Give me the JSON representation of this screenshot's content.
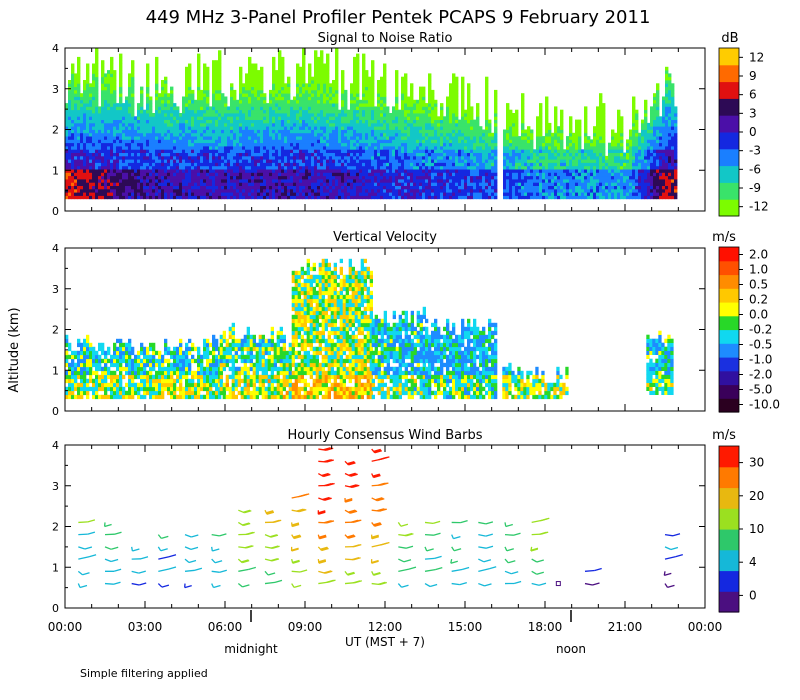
{
  "figure": {
    "title": "449 MHz 3-Panel Profiler Pentek PCAPS  9 February 2011",
    "ylabel": "Altitude (km)",
    "xlabel": "UT  (MST + 7)",
    "footnote": "Simple filtering applied",
    "midnight_label": "midnight",
    "noon_label": "noon"
  },
  "chart_data": [
    {
      "type": "heatmap",
      "title": "Signal to Noise Ratio",
      "units": "dB",
      "x_range_hours": [
        0,
        24
      ],
      "x_ticks": [
        "00:00",
        "03:00",
        "06:00",
        "09:00",
        "12:00",
        "15:00",
        "18:00",
        "21:00",
        "00:00"
      ],
      "y_ticks": [
        0,
        1,
        2,
        3,
        4
      ],
      "ylim": [
        0,
        4
      ],
      "colorbar": {
        "ticks": [
          "12",
          "9",
          "6",
          "3",
          "0",
          "-3",
          "-6",
          "-9",
          "-12"
        ]
      },
      "data_start_hour": 0.0,
      "data_end_hour": 22.9,
      "gap_hours": [
        16.1,
        16.4
      ],
      "snr_profile_dB": [
        {
          "hour": 0.0,
          "low": 9,
          "mid": 1,
          "top_km": 2.6
        },
        {
          "hour": 1.5,
          "low": 6,
          "mid": 1,
          "top_km": 2.4
        },
        {
          "hour": 3.0,
          "low": 3,
          "mid": 0,
          "top_km": 2.2
        },
        {
          "hour": 6.0,
          "low": 2,
          "mid": -1,
          "top_km": 2.3
        },
        {
          "hour": 9.0,
          "low": 3,
          "mid": 0,
          "top_km": 2.5
        },
        {
          "hour": 12.0,
          "low": 1,
          "mid": -2,
          "top_km": 2.2
        },
        {
          "hour": 15.0,
          "low": 0,
          "mid": -4,
          "top_km": 1.9
        },
        {
          "hour": 18.0,
          "low": -3,
          "mid": -7,
          "top_km": 1.4
        },
        {
          "hour": 21.0,
          "low": -4,
          "mid": -8,
          "top_km": 1.2
        },
        {
          "hour": 22.5,
          "low": 8,
          "mid": 2,
          "top_km": 2.5
        }
      ]
    },
    {
      "type": "heatmap",
      "title": "Vertical Velocity",
      "units": "m/s",
      "x_range_hours": [
        0,
        24
      ],
      "y_ticks": [
        0,
        1,
        2,
        3,
        4
      ],
      "ylim": [
        0,
        4
      ],
      "colorbar": {
        "ticks": [
          "2.0",
          "1.0",
          "0.5",
          "0.2",
          "0.0",
          "-0.2",
          "-0.5",
          "-1.0",
          "-2.0",
          "-5.0",
          "-10.0"
        ]
      },
      "blocks": [
        {
          "h0": 0.0,
          "h1": 5.8,
          "z0": 0.3,
          "z1": 1.8,
          "w": -0.3
        },
        {
          "h0": 5.8,
          "h1": 8.5,
          "z0": 0.3,
          "z1": 2.1,
          "w": -0.2
        },
        {
          "h0": 8.5,
          "h1": 11.5,
          "z0": 0.3,
          "z1": 3.8,
          "w": 0.0
        },
        {
          "h0": 11.5,
          "h1": 13.5,
          "z0": 0.3,
          "z1": 2.5,
          "w": -0.4
        },
        {
          "h0": 13.5,
          "h1": 16.1,
          "z0": 0.3,
          "z1": 2.3,
          "w": -0.5
        },
        {
          "h0": 16.4,
          "h1": 18.8,
          "z0": 0.3,
          "z1": 1.1,
          "w": -0.3
        },
        {
          "h0": 21.8,
          "h1": 22.8,
          "z0": 0.4,
          "z1": 1.9,
          "w": -0.4
        }
      ]
    },
    {
      "type": "wind_barbs",
      "title": "Hourly Consensus Wind Barbs",
      "units": "m/s",
      "x_range_hours": [
        0,
        24
      ],
      "y_ticks": [
        0,
        1,
        2,
        3,
        4
      ],
      "ylim": [
        0,
        4
      ],
      "colorbar": {
        "ticks": [
          "30",
          "20",
          "10",
          "4",
          "0"
        ]
      },
      "barb_heights_km": [
        0.6,
        0.9,
        1.2,
        1.5,
        1.8,
        2.1,
        2.4,
        2.7,
        3.0,
        3.3,
        3.6,
        3.9
      ],
      "hourly_columns": [
        {
          "hour": 0.5,
          "top_km": 2.2,
          "speed": 6
        },
        {
          "hour": 1.5,
          "top_km": 2.2,
          "speed": 6
        },
        {
          "hour": 2.5,
          "top_km": 1.6,
          "speed": 4
        },
        {
          "hour": 3.5,
          "top_km": 2.0,
          "speed": 5
        },
        {
          "hour": 4.5,
          "top_km": 1.9,
          "speed": 5
        },
        {
          "hour": 5.5,
          "top_km": 1.8,
          "speed": 6
        },
        {
          "hour": 6.5,
          "top_km": 2.4,
          "speed": 9
        },
        {
          "hour": 7.5,
          "top_km": 2.4,
          "speed": 11
        },
        {
          "hour": 8.5,
          "top_km": 2.9,
          "speed": 13
        },
        {
          "hour": 9.5,
          "top_km": 3.9,
          "speed": 17
        },
        {
          "hour": 10.5,
          "top_km": 3.6,
          "speed": 16
        },
        {
          "hour": 11.5,
          "top_km": 3.9,
          "speed": 15
        },
        {
          "hour": 12.5,
          "top_km": 2.2,
          "speed": 8
        },
        {
          "hour": 13.5,
          "top_km": 2.2,
          "speed": 7
        },
        {
          "hour": 14.5,
          "top_km": 2.2,
          "speed": 6
        },
        {
          "hour": 15.5,
          "top_km": 2.2,
          "speed": 6
        },
        {
          "hour": 16.5,
          "top_km": 2.2,
          "speed": 7
        },
        {
          "hour": 17.5,
          "top_km": 2.2,
          "speed": 8
        },
        {
          "hour": 18.5,
          "top_km": 0.6,
          "speed": 0
        },
        {
          "hour": 19.5,
          "top_km": 0.9,
          "speed": 2
        },
        {
          "hour": 22.5,
          "top_km": 2.0,
          "speed": 3
        }
      ]
    }
  ]
}
